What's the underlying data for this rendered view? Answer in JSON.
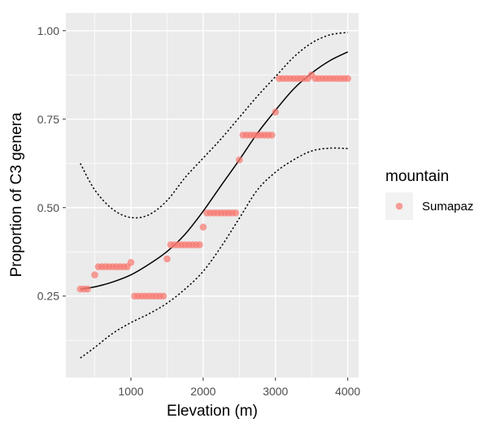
{
  "chart_data": {
    "type": "scatter",
    "title": "",
    "xlabel": "Elevation (m)",
    "ylabel": "Proportion of C3 genera",
    "xlim": [
      100,
      4150
    ],
    "ylim": [
      0.02,
      1.05
    ],
    "x_ticks": [
      1000,
      2000,
      3000,
      4000
    ],
    "x_tick_labels": [
      "1000",
      "2000",
      "3000",
      "4000"
    ],
    "y_ticks": [
      0.25,
      0.5,
      0.75,
      1.0
    ],
    "y_tick_labels": [
      "0.25",
      "0.50",
      "0.75",
      "1.00"
    ],
    "grid": true,
    "legend": {
      "title": "mountain",
      "placement": "right",
      "entries": [
        "Sumapaz"
      ]
    },
    "series": [
      {
        "name": "Sumapaz",
        "kind": "points",
        "color": "#F8766D",
        "x": [
          300,
          350,
          400,
          500,
          550,
          600,
          650,
          700,
          750,
          800,
          850,
          900,
          950,
          1000,
          1050,
          1100,
          1150,
          1200,
          1250,
          1300,
          1350,
          1400,
          1450,
          1500,
          1550,
          1600,
          1650,
          1700,
          1750,
          1800,
          1850,
          1900,
          1950,
          2000,
          2050,
          2100,
          2150,
          2200,
          2250,
          2300,
          2350,
          2400,
          2450,
          2500,
          2550,
          2600,
          2650,
          2700,
          2750,
          2800,
          2850,
          2900,
          2950,
          3000,
          3050,
          3100,
          3150,
          3200,
          3250,
          3300,
          3350,
          3400,
          3450,
          3500,
          3550,
          3600,
          3650,
          3700,
          3750,
          3800,
          3850,
          3900,
          3950,
          4000
        ],
        "y": [
          0.27,
          0.27,
          0.27,
          0.31,
          0.333,
          0.333,
          0.333,
          0.333,
          0.333,
          0.333,
          0.333,
          0.333,
          0.333,
          0.345,
          0.25,
          0.25,
          0.25,
          0.25,
          0.25,
          0.25,
          0.25,
          0.25,
          0.25,
          0.355,
          0.395,
          0.395,
          0.395,
          0.395,
          0.395,
          0.395,
          0.395,
          0.395,
          0.395,
          0.445,
          0.485,
          0.485,
          0.485,
          0.485,
          0.485,
          0.485,
          0.485,
          0.485,
          0.485,
          0.635,
          0.705,
          0.705,
          0.705,
          0.705,
          0.705,
          0.705,
          0.705,
          0.705,
          0.705,
          0.77,
          0.865,
          0.865,
          0.865,
          0.865,
          0.865,
          0.865,
          0.865,
          0.865,
          0.865,
          0.875,
          0.865,
          0.865,
          0.865,
          0.865,
          0.865,
          0.865,
          0.865,
          0.865,
          0.865,
          0.865
        ]
      },
      {
        "name": "fit",
        "kind": "line",
        "style": "solid",
        "color": "#000000",
        "x": [
          300,
          500,
          750,
          1000,
          1250,
          1500,
          1750,
          2000,
          2250,
          2500,
          2750,
          3000,
          3250,
          3500,
          3750,
          4000
        ],
        "y": [
          0.27,
          0.276,
          0.29,
          0.31,
          0.34,
          0.376,
          0.425,
          0.49,
          0.563,
          0.635,
          0.71,
          0.775,
          0.835,
          0.88,
          0.915,
          0.94
        ]
      },
      {
        "name": "upper",
        "kind": "line",
        "style": "dotted",
        "color": "#000000",
        "x": [
          300,
          500,
          750,
          1000,
          1250,
          1500,
          1750,
          2000,
          2250,
          2500,
          2750,
          3000,
          3250,
          3500,
          3750,
          4000
        ],
        "y": [
          0.625,
          0.55,
          0.495,
          0.472,
          0.48,
          0.52,
          0.585,
          0.64,
          0.695,
          0.755,
          0.815,
          0.87,
          0.925,
          0.965,
          0.988,
          0.995
        ]
      },
      {
        "name": "lower",
        "kind": "line",
        "style": "dotted",
        "color": "#000000",
        "x": [
          300,
          500,
          750,
          1000,
          1250,
          1500,
          1750,
          2000,
          2250,
          2500,
          2750,
          3000,
          3250,
          3500,
          3750,
          4000
        ],
        "y": [
          0.075,
          0.105,
          0.145,
          0.175,
          0.2,
          0.23,
          0.27,
          0.32,
          0.39,
          0.47,
          0.55,
          0.6,
          0.635,
          0.66,
          0.668,
          0.667
        ]
      }
    ]
  }
}
